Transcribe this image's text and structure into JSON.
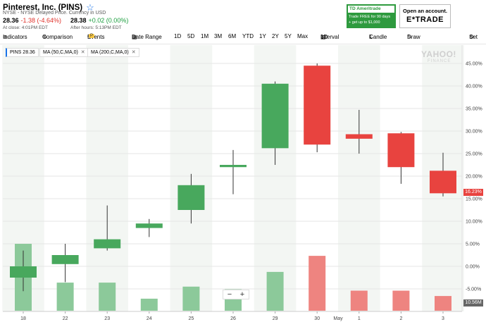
{
  "header": {
    "title": "Pinterest, Inc. (PINS)",
    "subtitle": "NYSE - NYSE Delayed Price. Currency in USD",
    "price": "28.36",
    "change": "-1.38 (-4.64%)",
    "close_note": "At close: 4:01PM EDT",
    "after_price": "28.38",
    "after_change": "+0.02 (0.00%)",
    "after_note": "After hours: 5:13PM EDT"
  },
  "ads": {
    "ameritrade_brand": "Ameritrade",
    "ameritrade_line1": "Trade FREE for 90 days",
    "ameritrade_line2": "+ get up to $1,000",
    "etrade_line1": "Open an account.",
    "etrade_line2": "E*TRADE"
  },
  "toolbar": {
    "indicators": "Indicators",
    "comparison": "Comparison",
    "events": "Events",
    "events_badge": "P",
    "date_range": "Date Range",
    "ranges": [
      "1D",
      "5D",
      "1M",
      "3M",
      "6M",
      "YTD",
      "1Y",
      "2Y",
      "5Y",
      "Max"
    ],
    "interval": "Interval",
    "interval_value": "1D",
    "candle": "Candle",
    "draw": "Draw",
    "settings": "Set"
  },
  "legend": {
    "pins": "PINS",
    "pins_value": "28.36",
    "ma50": "MA (50,C,MA,0)",
    "ma200": "MA (200,C,MA,0)"
  },
  "watermark": {
    "line1": "YAHOO!",
    "line2": "FINANCE"
  },
  "price_tag": "16.23%",
  "volume_tag": "10.56M",
  "chart_data": {
    "type": "candlestick",
    "y_unit": "%",
    "ylim": [
      -9,
      46
    ],
    "y_ticks": [
      45,
      40,
      35,
      30,
      25,
      20,
      15,
      10,
      5,
      0,
      -5
    ],
    "y_tick_labels": [
      "45.00%",
      "40.00%",
      "35.00%",
      "30.00%",
      "25.00%",
      "20.00%",
      "15.00%",
      "10.00%",
      "5.00%",
      "0.00%",
      "-5.00%"
    ],
    "categories": [
      "18",
      "22",
      "23",
      "24",
      "25",
      "26",
      "29",
      "30",
      "1",
      "2",
      "3"
    ],
    "month_label": "May",
    "candles": [
      {
        "open": -2.5,
        "high": 3.5,
        "low": -5.5,
        "close": 0.0
      },
      {
        "open": 0.5,
        "high": 5.0,
        "low": -3.5,
        "close": 2.5
      },
      {
        "open": 4.0,
        "high": 13.5,
        "low": 3.5,
        "close": 6.0
      },
      {
        "open": 8.5,
        "high": 10.5,
        "low": 6.5,
        "close": 9.5
      },
      {
        "open": 12.5,
        "high": 20.5,
        "low": 9.5,
        "close": 18.0
      },
      {
        "open": 22.0,
        "high": 25.8,
        "low": 16.0,
        "close": 22.5
      },
      {
        "open": 26.2,
        "high": 41.0,
        "low": 22.5,
        "close": 40.5
      },
      {
        "open": 44.5,
        "high": 45.0,
        "low": 25.3,
        "close": 27.0
      },
      {
        "open": 29.3,
        "high": 34.7,
        "low": 25.0,
        "close": 28.3
      },
      {
        "open": 29.5,
        "high": 29.8,
        "low": 18.3,
        "close": 22.0
      },
      {
        "open": 21.2,
        "high": 25.2,
        "low": 15.5,
        "close": 16.2
      }
    ],
    "volume_relative": [
      1.0,
      0.42,
      0.42,
      0.18,
      0.36,
      0.32,
      0.58,
      0.82,
      0.3,
      0.3,
      0.22
    ],
    "colors": {
      "up": "#48a85d",
      "down": "#e8433f",
      "up_volume": "#8cc99a",
      "down_volume": "#ee8480",
      "band": "#f3f6f3"
    }
  }
}
